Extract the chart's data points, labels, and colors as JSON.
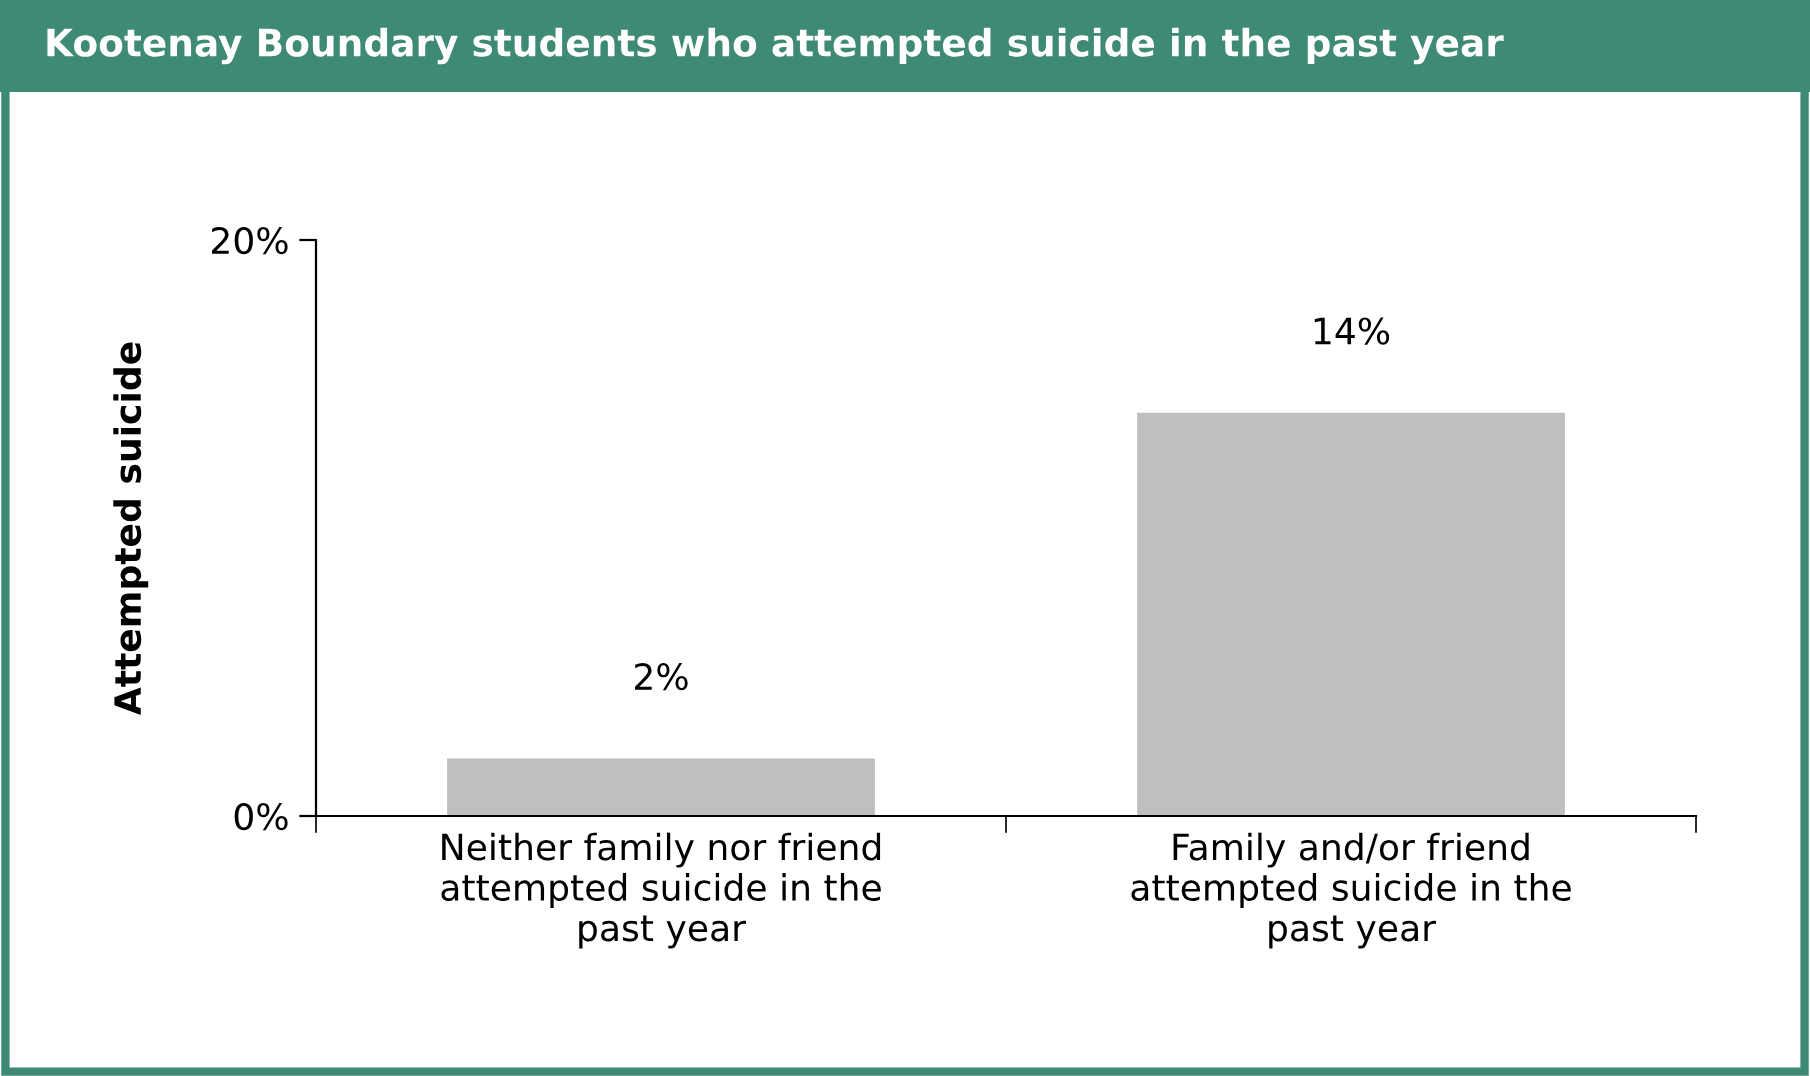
{
  "chart_data": {
    "type": "bar",
    "title": "Kootenay Boundary students who attempted suicide in the past year",
    "ylabel": "Attempted suicide",
    "categories": [
      "Neither family nor friend\nattempted suicide in the\npast year",
      "Family and/or friend\nattempted suicide in the\npast year"
    ],
    "values": [
      2,
      14
    ],
    "color": "#bfbfc0",
    "value_labels": [
      "2%",
      "14%"
    ],
    "ylim": [
      0,
      20
    ],
    "yticks": [
      {
        "value": 0,
        "label": "0%"
      },
      {
        "value": 20,
        "label": "20%"
      }
    ],
    "grid": false,
    "legend": false
  }
}
